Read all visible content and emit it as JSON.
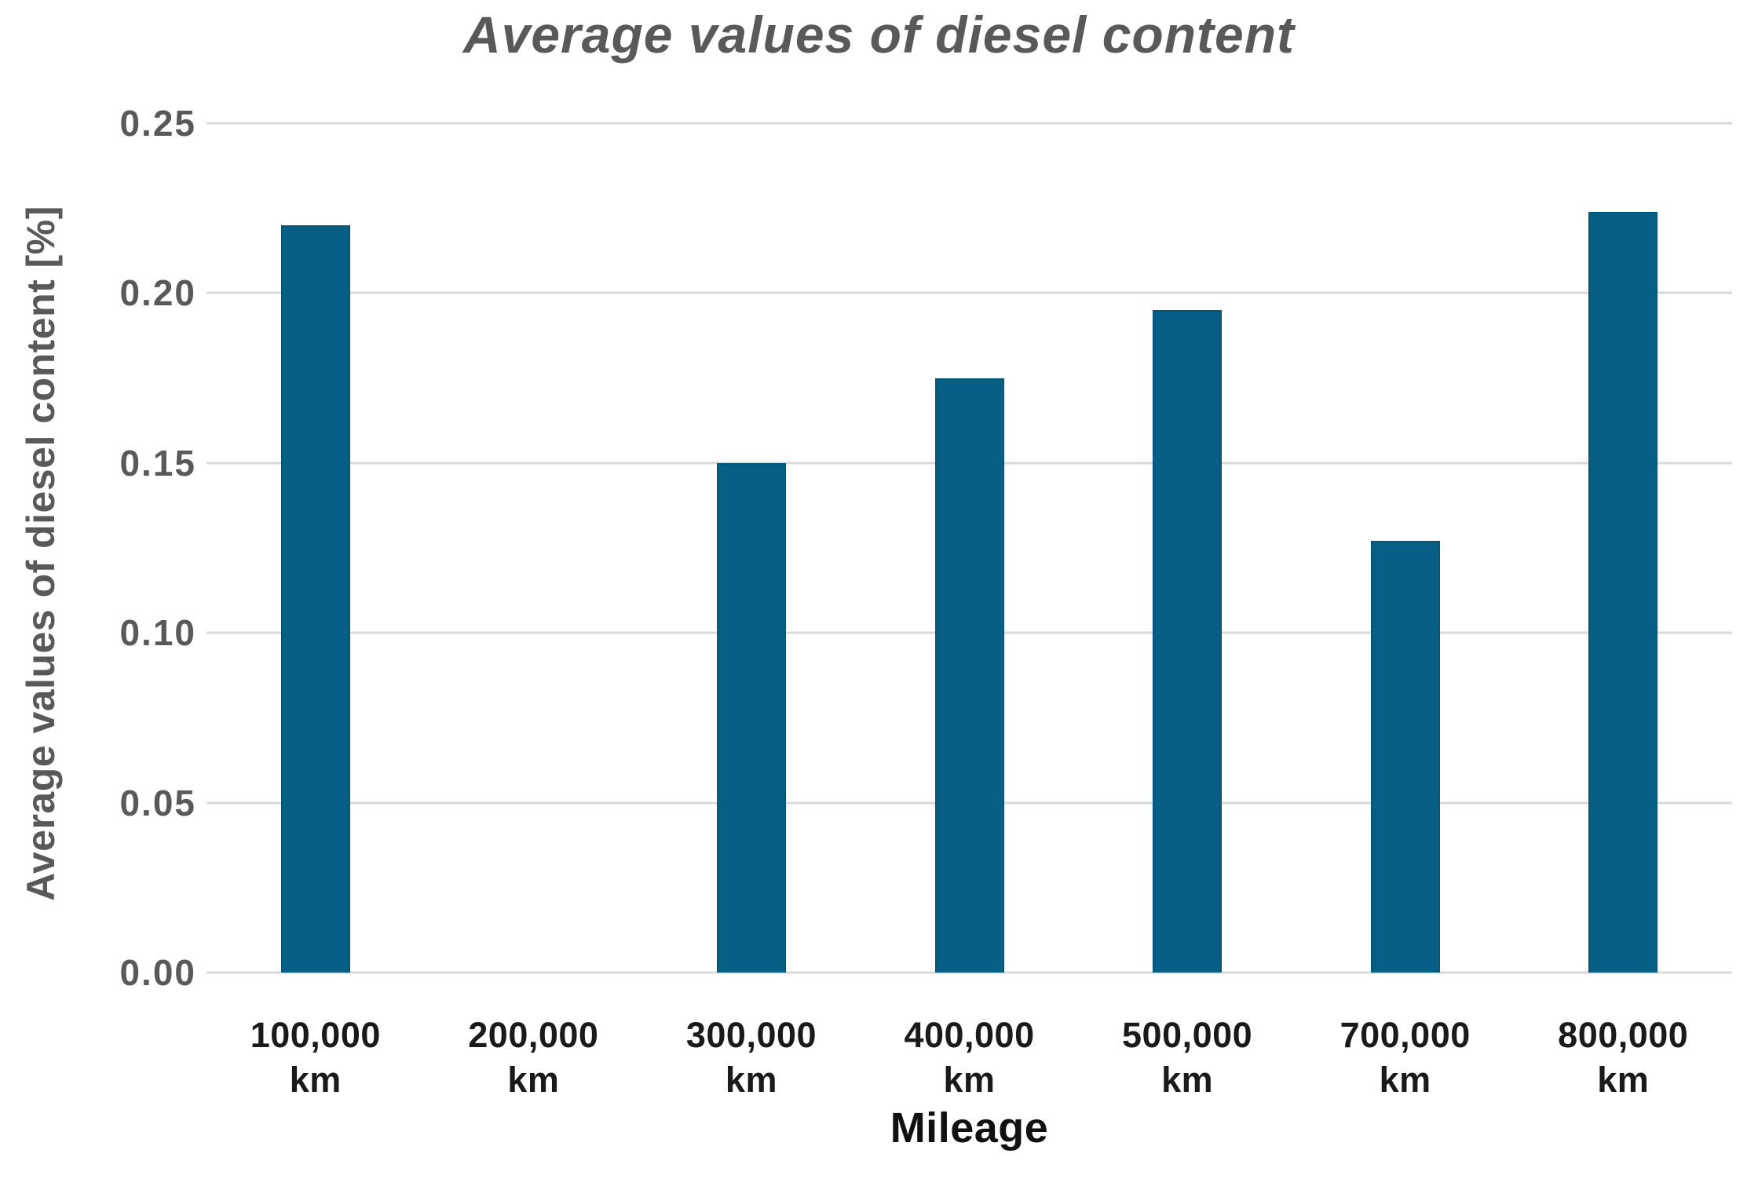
{
  "chart_data": {
    "type": "bar",
    "title": "Average values of diesel content",
    "xlabel": "Mileage",
    "ylabel": "Average values of diesel content [%]",
    "categories": [
      "100,000",
      "200,000",
      "300,000",
      "400,000",
      "500,000",
      "700,000",
      "800,000"
    ],
    "category_unit": "km",
    "values": [
      0.22,
      0,
      0.15,
      0.175,
      0.195,
      0.127,
      0.224
    ],
    "ylim": [
      0,
      0.25
    ],
    "yticks": [
      0,
      0.05,
      0.1,
      0.15,
      0.2,
      0.25
    ],
    "ytick_labels": [
      "0.00",
      "0.05",
      "0.10",
      "0.15",
      "0.20",
      "0.25"
    ],
    "grid": true,
    "legend": false,
    "colors": {
      "bar": "#075f86",
      "bar_edge": "#0a5576",
      "gridline": "#d9d9d9",
      "title": "#595959",
      "y_axis_title": "#595959",
      "y_tick": "#595959",
      "x_tick": "#1a1a1a",
      "x_axis_title": "#111111"
    }
  }
}
